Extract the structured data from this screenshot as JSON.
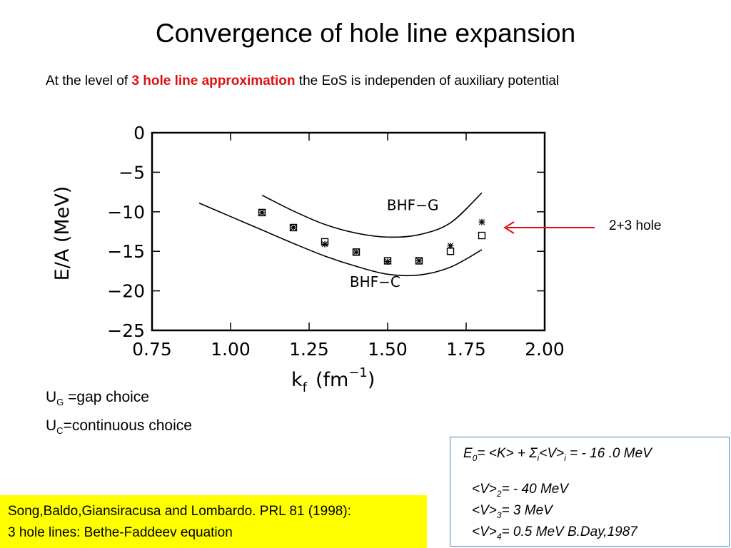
{
  "slide": {
    "title": "Convergence of hole line expansion",
    "subtitle": {
      "pre": "At the level of ",
      "highlight": "3 hole line approximation",
      "post": " the EoS is independen of  auxiliary potential"
    },
    "annotation": "2+3 hole",
    "notes": {
      "ug_letter": "U",
      "ug_sub": "G",
      "ug_text": " =gap choice",
      "uc_letter": "U",
      "uc_sub": "C",
      "uc_text": "=continuous choice"
    },
    "formula": {
      "e0_a": "E",
      "e0_a_sub": "0",
      "e0_b": "=  <K> + Σ",
      "e0_b_sub": "i",
      "e0_c": "<V>",
      "e0_c_sub": "i",
      "e0_d": " =  - 16 .0 MeV",
      "v2_a": "<V>",
      "v2_sub": "2",
      "v2_b": "= - 40 MeV",
      "v3_a": "<V>",
      "v3_sub": "3",
      "v3_b": "=    3  MeV",
      "v4_a": "<V>",
      "v4_sub": "4",
      "v4_b": "=  0.5 MeV        B.Day,1987"
    },
    "reference": {
      "line1": "Song,Baldo,Giansiracusa and Lombardo. PRL 81 (1998):",
      "line2": "3 hole lines: Bethe-Faddeev equation"
    },
    "colors": {
      "accent_red": "#e01010",
      "box_border": "#4a86c5",
      "ref_bg": "#ffff00"
    }
  },
  "chart_data": {
    "type": "line",
    "xlabel": "k",
    "xlabel_sub": "f",
    "xlabel_unit": "(fm",
    "xlabel_exp": "−1",
    "xlabel_close": ")",
    "ylabel": "E/A (MeV)",
    "xlim": [
      0.75,
      2.0
    ],
    "ylim": [
      -25,
      0
    ],
    "x_ticks": [
      0.75,
      1.0,
      1.25,
      1.5,
      1.75,
      2.0
    ],
    "x_tick_labels": [
      "0.75",
      "1.00",
      "1.25",
      "1.50",
      "1.75",
      "2.00"
    ],
    "y_ticks": [
      0,
      -5,
      -10,
      -15,
      -20,
      -25
    ],
    "y_tick_labels": [
      "0",
      "−5",
      "−10",
      "−15",
      "−20",
      "−25"
    ],
    "series": [
      {
        "name": "BHF−G",
        "style": "line",
        "x": [
          1.1,
          1.2,
          1.3,
          1.4,
          1.5,
          1.6,
          1.7,
          1.8
        ],
        "y": [
          -7.9,
          -9.9,
          -11.6,
          -12.7,
          -13.2,
          -12.9,
          -11.4,
          -7.6
        ]
      },
      {
        "name": "BHF−C",
        "style": "line",
        "x": [
          0.9,
          1.0,
          1.1,
          1.2,
          1.3,
          1.4,
          1.5,
          1.6,
          1.7,
          1.8
        ],
        "y": [
          -8.9,
          -10.6,
          -12.3,
          -14.0,
          -15.6,
          -16.9,
          -17.9,
          -18.0,
          -17.0,
          -14.8
        ]
      },
      {
        "name": "",
        "style": "marker-square",
        "x": [
          1.1,
          1.2,
          1.3,
          1.4,
          1.5,
          1.6,
          1.7,
          1.8
        ],
        "y": [
          -10.1,
          -12.0,
          -13.8,
          -15.1,
          -16.2,
          -16.2,
          -15.0,
          -13.0
        ]
      },
      {
        "name": "",
        "style": "marker-star",
        "x": [
          1.1,
          1.2,
          1.3,
          1.4,
          1.5,
          1.6,
          1.7,
          1.8
        ],
        "y": [
          -10.1,
          -12.0,
          -14.1,
          -15.1,
          -16.3,
          -16.2,
          -14.3,
          -11.3
        ]
      }
    ],
    "annotations": [
      {
        "text": "BHF−G",
        "x": 1.58,
        "y": -9.8
      },
      {
        "text": "BHF−C",
        "x": 1.46,
        "y": -19.5
      }
    ]
  }
}
